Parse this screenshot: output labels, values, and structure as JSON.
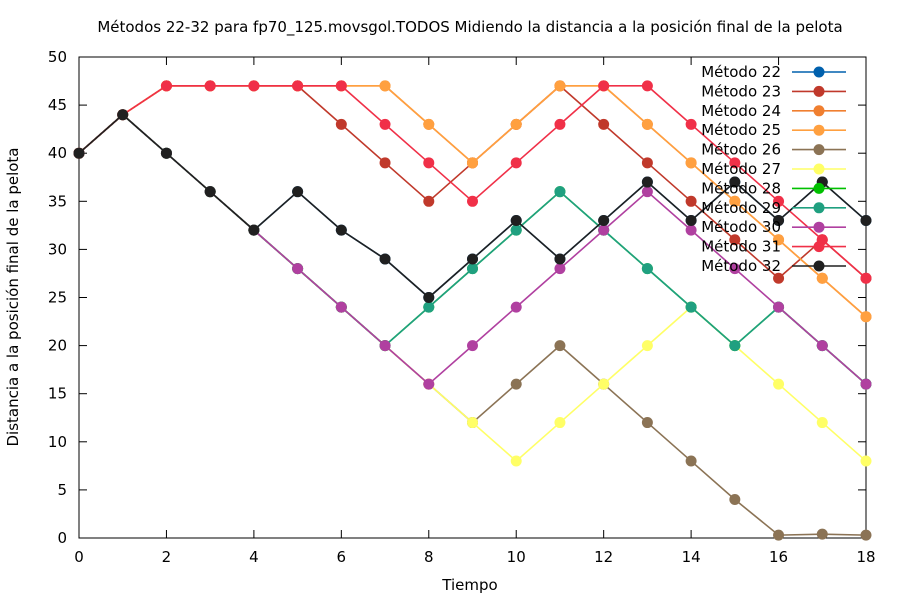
{
  "chart_data": {
    "type": "line",
    "title": "Métodos 22-32 para fp70_125.movsgol.TODOS Midiendo la distancia a la posición final de la pelota",
    "xlabel": "Tiempo",
    "ylabel": "Distancia a la posición final de la pelota",
    "xlim": [
      0,
      18
    ],
    "ylim": [
      0,
      50
    ],
    "x_ticks": [
      0,
      2,
      4,
      6,
      8,
      10,
      12,
      14,
      16,
      18
    ],
    "y_ticks": [
      0,
      5,
      10,
      15,
      20,
      25,
      30,
      35,
      40,
      45,
      50
    ],
    "grid": false,
    "legend_position": "top-right",
    "x": [
      0,
      1,
      2,
      3,
      4,
      5,
      6,
      7,
      8,
      9,
      10,
      11,
      12,
      13,
      14,
      15,
      16,
      17,
      18
    ],
    "series": [
      {
        "name": "Método 22",
        "color": "#0060ad",
        "values": [
          40,
          44,
          40,
          36,
          32,
          36,
          32,
          29,
          25,
          29,
          33,
          29,
          33,
          37,
          33,
          37,
          33,
          37,
          33
        ]
      },
      {
        "name": "Método 23",
        "color": "#c0392b",
        "values": [
          40,
          44,
          47,
          47,
          47,
          47,
          43,
          39,
          35,
          39,
          43,
          47,
          43,
          39,
          35,
          31,
          27,
          31,
          27
        ]
      },
      {
        "name": "Método 24",
        "color": "#f07f30",
        "values": [
          40,
          44,
          47,
          47,
          47,
          47,
          47,
          47,
          43,
          39,
          43,
          47,
          47,
          43,
          39,
          35,
          31,
          27,
          23
        ]
      },
      {
        "name": "Método 25",
        "color": "#ffa040",
        "values": [
          40,
          44,
          47,
          47,
          47,
          47,
          47,
          47,
          43,
          39,
          43,
          47,
          47,
          43,
          39,
          35,
          31,
          27,
          23
        ]
      },
      {
        "name": "Método 26",
        "color": "#8b7355",
        "values": [
          40,
          44,
          40,
          36,
          32,
          28,
          24,
          20,
          16,
          12,
          16,
          20,
          16,
          12,
          8,
          4,
          0.3,
          0.4,
          0.3
        ]
      },
      {
        "name": "Método 27",
        "color": "#ffff66",
        "values": [
          40,
          44,
          40,
          36,
          32,
          28,
          24,
          20,
          16,
          12,
          8,
          12,
          16,
          20,
          24,
          20,
          16,
          12,
          8
        ]
      },
      {
        "name": "Método 28",
        "color": "#00c000",
        "values": [
          40,
          44,
          40,
          36,
          32,
          28,
          24,
          20,
          24,
          28,
          32,
          36,
          32,
          28,
          24,
          20,
          24,
          20,
          16
        ]
      },
      {
        "name": "Método 29",
        "color": "#20a080",
        "values": [
          40,
          44,
          40,
          36,
          32,
          28,
          24,
          20,
          24,
          28,
          32,
          36,
          32,
          28,
          24,
          20,
          24,
          20,
          16
        ]
      },
      {
        "name": "Método 30",
        "color": "#b040a0",
        "values": [
          40,
          44,
          40,
          36,
          32,
          28,
          24,
          20,
          16,
          20,
          24,
          28,
          32,
          36,
          32,
          28,
          24,
          20,
          16
        ]
      },
      {
        "name": "Método 31",
        "color": "#f03048",
        "values": [
          40,
          44,
          47,
          47,
          47,
          47,
          47,
          43,
          39,
          35,
          39,
          43,
          47,
          47,
          43,
          39,
          35,
          31,
          27
        ]
      },
      {
        "name": "Método 32",
        "color": "#202020",
        "values": [
          40,
          44,
          40,
          36,
          32,
          36,
          32,
          29,
          25,
          29,
          33,
          29,
          33,
          37,
          33,
          37,
          33,
          37,
          33
        ]
      }
    ]
  }
}
